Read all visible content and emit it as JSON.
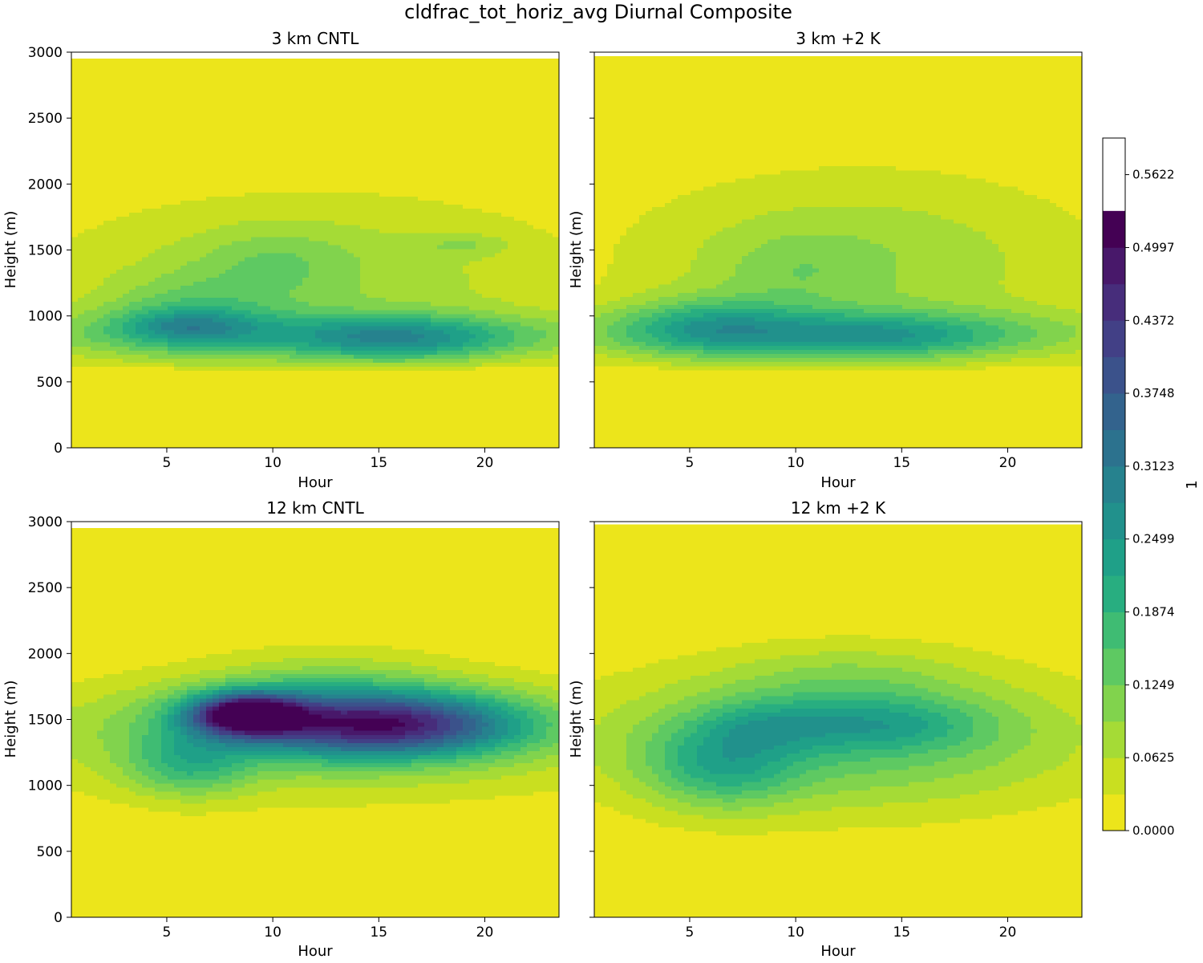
{
  "chart_data": {
    "type": "heatmap",
    "title": "cldfrac_tot_horiz_avg Diurnal Composite",
    "colorbar": {
      "label": "1",
      "levels": [
        0.0,
        0.03124,
        0.06248,
        0.09372,
        0.12496,
        0.1562,
        0.18744,
        0.21868,
        0.24992,
        0.28116,
        0.3124,
        0.34364,
        0.37488,
        0.40612,
        0.43736,
        0.4686,
        0.49984,
        0.53108,
        0.56232,
        0.59356
      ],
      "tick_values": [
        0.0,
        0.0625,
        0.1249,
        0.1874,
        0.2499,
        0.3123,
        0.3748,
        0.4372,
        0.4997,
        0.5622
      ],
      "tick_labels": [
        "0.0000",
        "0.0625",
        "0.1249",
        "0.1874",
        "0.2499",
        "0.3123",
        "0.3748",
        "0.4372",
        "0.4997",
        "0.5622"
      ],
      "colors": [
        "#ece51b",
        "#c9df20",
        "#a5db36",
        "#81d34d",
        "#5ec962",
        "#3fbc73",
        "#28ae80",
        "#1fa088",
        "#21918c",
        "#26828e",
        "#2c728e",
        "#33638d",
        "#3b528b",
        "#424086",
        "#472d7b",
        "#48186a",
        "#440154"
      ]
    },
    "x_range": [
      0.5,
      23.5
    ],
    "y_range": [
      0,
      3000
    ],
    "panels": [
      {
        "title": "3 km CNTL",
        "xlabel": "Hour",
        "ylabel": "Height (m)",
        "x_ticks": [
          5,
          10,
          15,
          20
        ],
        "y_ticks": [
          0,
          500,
          1000,
          1500,
          2000,
          2500,
          3000
        ],
        "y_top_data": 2950,
        "blobs": [
          {
            "x": 12,
            "y": 1300,
            "sx": 9,
            "sy": 450,
            "a": 0.085
          },
          {
            "x": 6,
            "y": 1000,
            "sx": 3,
            "sy": 200,
            "a": 0.09
          },
          {
            "x": 6,
            "y": 930,
            "sx": 2,
            "sy": 80,
            "a": 0.09
          },
          {
            "x": 16,
            "y": 820,
            "sx": 3.5,
            "sy": 120,
            "a": 0.14
          },
          {
            "x": 12,
            "y": 850,
            "sx": 12,
            "sy": 130,
            "a": 0.12
          },
          {
            "x": 10,
            "y": 1400,
            "sx": 2.5,
            "sy": 180,
            "a": 0.05
          },
          {
            "x": 19,
            "y": 1540,
            "sx": 1.5,
            "sy": 60,
            "a": 0.045
          }
        ]
      },
      {
        "title": "3 km +2 K",
        "xlabel": "Hour",
        "ylabel": "Height (m)",
        "x_ticks": [
          5,
          10,
          15,
          20
        ],
        "y_ticks": [
          0,
          500,
          1000,
          1500,
          2000,
          2500,
          3000
        ],
        "y_top_data": 2970,
        "blobs": [
          {
            "x": 13,
            "y": 1400,
            "sx": 8,
            "sy": 500,
            "a": 0.09
          },
          {
            "x": 6,
            "y": 920,
            "sx": 3,
            "sy": 160,
            "a": 0.13
          },
          {
            "x": 14,
            "y": 840,
            "sx": 4,
            "sy": 120,
            "a": 0.11
          },
          {
            "x": 11,
            "y": 860,
            "sx": 12,
            "sy": 140,
            "a": 0.11
          },
          {
            "x": 10,
            "y": 1350,
            "sx": 2.5,
            "sy": 200,
            "a": 0.04
          }
        ]
      },
      {
        "title": "12 km CNTL",
        "xlabel": "Hour",
        "ylabel": "Height (m)",
        "x_ticks": [
          5,
          10,
          15,
          20
        ],
        "y_ticks": [
          0,
          500,
          1000,
          1500,
          2000,
          2500,
          3000
        ],
        "y_top_data": 2950,
        "blobs": [
          {
            "x": 12,
            "y": 1350,
            "sx": 11,
            "sy": 330,
            "a": 0.1
          },
          {
            "x": 8.7,
            "y": 1540,
            "sx": 1.8,
            "sy": 110,
            "a": 0.42
          },
          {
            "x": 15.5,
            "y": 1460,
            "sx": 4.5,
            "sy": 170,
            "a": 0.33
          },
          {
            "x": 12,
            "y": 1500,
            "sx": 6,
            "sy": 200,
            "a": 0.1
          },
          {
            "x": 6,
            "y": 1150,
            "sx": 2,
            "sy": 170,
            "a": 0.12
          },
          {
            "x": 12.5,
            "y": 1800,
            "sx": 4,
            "sy": 200,
            "a": 0.05
          }
        ]
      },
      {
        "title": "12 km +2 K",
        "xlabel": "Hour",
        "ylabel": "Height (m)",
        "x_ticks": [
          5,
          10,
          15,
          20
        ],
        "y_ticks": [
          0,
          500,
          1000,
          1500,
          2000,
          2500,
          3000
        ],
        "y_top_data": 2980,
        "blobs": [
          {
            "x": 12,
            "y": 1350,
            "sx": 8.5,
            "sy": 380,
            "a": 0.15
          },
          {
            "x": 6.5,
            "y": 1150,
            "sx": 2.5,
            "sy": 230,
            "a": 0.13
          },
          {
            "x": 8.5,
            "y": 1450,
            "sx": 2,
            "sy": 130,
            "a": 0.06
          },
          {
            "x": 14,
            "y": 1460,
            "sx": 3.5,
            "sy": 140,
            "a": 0.1
          },
          {
            "x": 12.5,
            "y": 1800,
            "sx": 4,
            "sy": 200,
            "a": 0.05
          }
        ]
      }
    ]
  }
}
